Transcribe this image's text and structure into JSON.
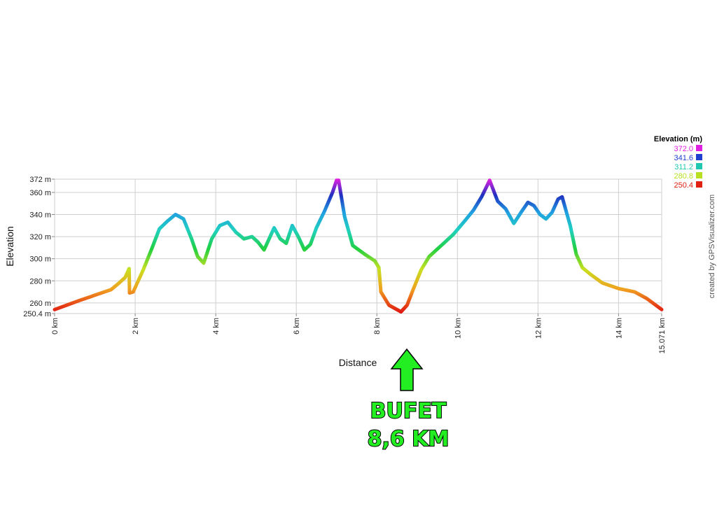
{
  "chart_data": {
    "type": "line",
    "xlabel": "Distance",
    "ylabel": "Elevation",
    "x_unit": "km",
    "y_unit": "m",
    "xlim": [
      0,
      15.071
    ],
    "ylim": [
      250.4,
      372
    ],
    "x_ticks": [
      0,
      2,
      4,
      6,
      8,
      10,
      12,
      14,
      15.071
    ],
    "x_tick_labels": [
      "0 km",
      "2 km",
      "4 km",
      "6 km",
      "8 km",
      "10 km",
      "12 km",
      "14 km",
      "15.071 km"
    ],
    "y_ticks": [
      250.4,
      260,
      280,
      300,
      320,
      340,
      360,
      372
    ],
    "y_tick_labels": [
      "250.4 m",
      "260 m",
      "280 m",
      "300 m",
      "320 m",
      "340 m",
      "360 m",
      "372 m"
    ],
    "grid": true,
    "series": [
      {
        "x": [
          0,
          0.3,
          0.6,
          1.0,
          1.4,
          1.6,
          1.75,
          1.85,
          1.86,
          1.95,
          2.2,
          2.4,
          2.6,
          2.8,
          3.0,
          3.2,
          3.4,
          3.55,
          3.7,
          3.9,
          4.1,
          4.3,
          4.5,
          4.7,
          4.9,
          5.05,
          5.2,
          5.3,
          5.45,
          5.6,
          5.75,
          5.9,
          6.05,
          6.2,
          6.35,
          6.5,
          6.7,
          6.9,
          7.0,
          7.05,
          7.2,
          7.4,
          7.7,
          7.95,
          8.05,
          8.1,
          8.3,
          8.6,
          8.75,
          8.9,
          9.1,
          9.3,
          9.6,
          9.9,
          10.2,
          10.4,
          10.6,
          10.8,
          11.0,
          11.2,
          11.4,
          11.6,
          11.75,
          11.9,
          12.05,
          12.2,
          12.35,
          12.5,
          12.6,
          12.8,
          12.95,
          13.1,
          13.3,
          13.6,
          14.0,
          14.4,
          14.7,
          15.071
        ],
        "y": [
          254,
          258,
          262,
          267,
          272,
          278,
          283,
          291,
          269,
          270,
          290,
          308,
          327,
          334,
          340,
          336,
          318,
          302,
          296,
          318,
          330,
          333,
          324,
          318,
          320,
          315,
          308,
          316,
          328,
          318,
          314,
          330,
          320,
          308,
          313,
          328,
          343,
          360,
          371,
          371,
          338,
          312,
          304,
          298,
          292,
          270,
          258,
          252,
          258,
          272,
          290,
          302,
          312,
          322,
          335,
          344,
          356,
          371,
          352,
          345,
          332,
          343,
          351,
          348,
          340,
          336,
          342,
          354,
          356,
          330,
          304,
          292,
          286,
          278,
          273,
          270,
          264,
          254
        ]
      }
    ],
    "legend": {
      "title": "Elevation (m)",
      "position": "top-right",
      "items": [
        {
          "label": "372.0",
          "color": "#e020e0"
        },
        {
          "label": "341.6",
          "color": "#2040d0"
        },
        {
          "label": "311.2",
          "color": "#20c8b0"
        },
        {
          "label": "280.8",
          "color": "#b8e020"
        },
        {
          "label": "250.4",
          "color": "#e02010"
        }
      ]
    },
    "annotation": {
      "line1": "BUFET",
      "line2": "8,6 KM",
      "at_x": 8.6
    },
    "credit": "created by GPSVisualizer.com"
  }
}
